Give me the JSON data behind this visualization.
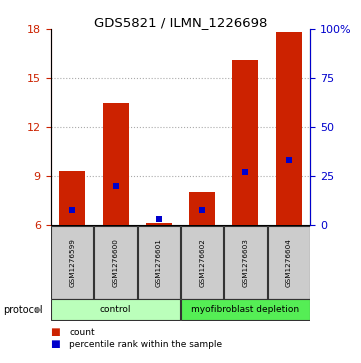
{
  "title": "GDS5821 / ILMN_1226698",
  "samples": [
    "GSM1276599",
    "GSM1276600",
    "GSM1276601",
    "GSM1276602",
    "GSM1276603",
    "GSM1276604"
  ],
  "count_values": [
    9.3,
    13.5,
    6.1,
    8.0,
    16.1,
    17.8
  ],
  "percentile_values": [
    7.5,
    20.0,
    3.0,
    7.5,
    27.0,
    33.0
  ],
  "ylim_left": [
    6,
    18
  ],
  "ylim_right": [
    0,
    100
  ],
  "yticks_left": [
    6,
    9,
    12,
    15,
    18
  ],
  "yticks_right": [
    0,
    25,
    50,
    75,
    100
  ],
  "bar_color": "#cc2200",
  "percentile_color": "#0000cc",
  "groups": [
    {
      "label": "control",
      "indices": [
        0,
        1,
        2
      ],
      "color": "#bbffbb"
    },
    {
      "label": "myofibroblast depletion",
      "indices": [
        3,
        4,
        5
      ],
      "color": "#55ee55"
    }
  ],
  "protocol_label": "protocol",
  "legend_count_label": "count",
  "legend_percentile_label": "percentile rank within the sample",
  "sample_box_color": "#cccccc",
  "bar_width": 0.6,
  "base_value": 6.0,
  "grid_color": "#aaaaaa",
  "bg_color": "#ffffff"
}
